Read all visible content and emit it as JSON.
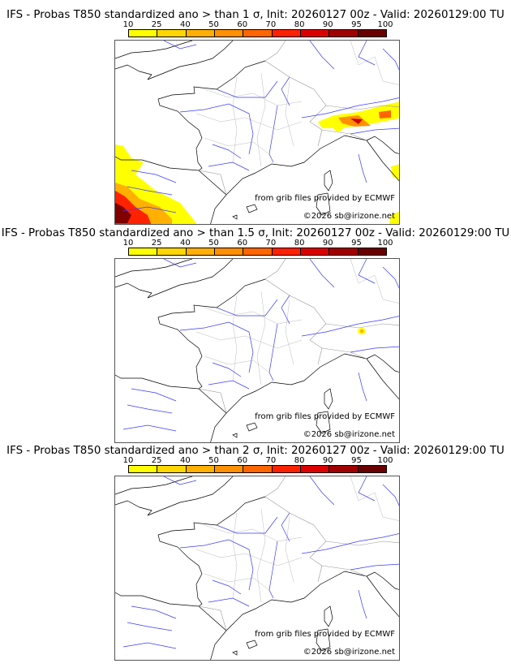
{
  "colorbar": {
    "ticks": [
      "10",
      "25",
      "40",
      "50",
      "60",
      "70",
      "80",
      "90",
      "95",
      "100"
    ],
    "colors": [
      "#ffff00",
      "#ffd700",
      "#ffb000",
      "#ff9000",
      "#ff6600",
      "#ff2200",
      "#dd0000",
      "#a00000",
      "#6a0000"
    ]
  },
  "panels": [
    {
      "title": "IFS - Probas T850  standardized ano > than 1 σ, Init: 20260127 00z - Valid: 20260129:00 TU",
      "credit_source": "from grib files provided by ECMWF",
      "credit_copyright": "©2026 sb@irizone.net"
    },
    {
      "title": "IFS - Probas T850  standardized ano > than 1.5 σ, Init: 20260127 00z - Valid: 20260129:00 TU",
      "credit_source": "from grib files provided by ECMWF",
      "credit_copyright": "©2026 sb@irizone.net"
    },
    {
      "title": "IFS - Probas T850  standardized ano > than 2 σ, Init: 20260127 00z - Valid: 20260129:00 TU",
      "credit_source": "from grib files provided by ECMWF",
      "credit_copyright": "©2026 sb@irizone.net"
    }
  ]
}
